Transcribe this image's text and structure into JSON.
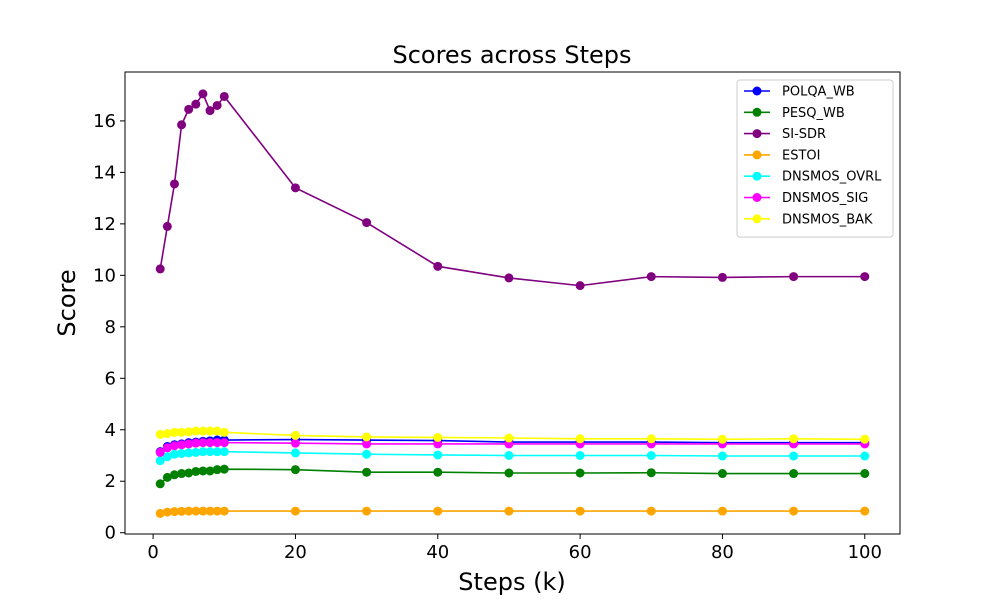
{
  "chart_data": {
    "type": "line",
    "title": "Scores across Steps",
    "xlabel": "Steps (k)",
    "ylabel": "Score",
    "xlim": [
      -3.95,
      104.95
    ],
    "ylim": [
      -0.05,
      17.9
    ],
    "xticks": [
      0,
      20,
      40,
      60,
      80,
      100
    ],
    "yticks": [
      0,
      2,
      4,
      6,
      8,
      10,
      12,
      14,
      16
    ],
    "grid": false,
    "legend_position": "top-right",
    "x": [
      1,
      2,
      3,
      4,
      5,
      6,
      7,
      8,
      9,
      10,
      20,
      30,
      40,
      50,
      60,
      70,
      80,
      90,
      100
    ],
    "series": [
      {
        "name": "POLQA_WB",
        "color": "#0000ff",
        "values": [
          3.15,
          3.35,
          3.42,
          3.45,
          3.5,
          3.52,
          3.55,
          3.57,
          3.6,
          3.6,
          3.62,
          3.6,
          3.58,
          3.52,
          3.52,
          3.52,
          3.5,
          3.5,
          3.5
        ]
      },
      {
        "name": "PESQ_WB",
        "color": "#008000",
        "values": [
          1.9,
          2.15,
          2.25,
          2.3,
          2.32,
          2.38,
          2.4,
          2.4,
          2.45,
          2.47,
          2.45,
          2.35,
          2.35,
          2.32,
          2.32,
          2.33,
          2.3,
          2.3,
          2.3
        ]
      },
      {
        "name": "SI-SDR",
        "color": "#800080",
        "values": [
          10.25,
          11.9,
          13.55,
          15.85,
          16.45,
          16.65,
          17.05,
          16.4,
          16.6,
          16.95,
          13.4,
          12.05,
          10.35,
          9.9,
          9.6,
          9.95,
          9.92,
          9.95,
          9.95
        ]
      },
      {
        "name": "ESTOI",
        "color": "#ffa500",
        "values": [
          0.75,
          0.8,
          0.82,
          0.83,
          0.84,
          0.84,
          0.84,
          0.84,
          0.84,
          0.84,
          0.84,
          0.84,
          0.84,
          0.84,
          0.84,
          0.84,
          0.84,
          0.84,
          0.84
        ]
      },
      {
        "name": "DNSMOS_OVRL",
        "color": "#00ffff",
        "values": [
          2.8,
          2.95,
          3.05,
          3.08,
          3.1,
          3.12,
          3.15,
          3.15,
          3.15,
          3.15,
          3.1,
          3.05,
          3.02,
          3.0,
          3.0,
          3.0,
          2.98,
          2.98,
          2.98
        ]
      },
      {
        "name": "DNSMOS_SIG",
        "color": "#ff00ff",
        "values": [
          3.12,
          3.3,
          3.38,
          3.42,
          3.45,
          3.48,
          3.5,
          3.5,
          3.5,
          3.5,
          3.48,
          3.45,
          3.45,
          3.45,
          3.45,
          3.45,
          3.45,
          3.45,
          3.45
        ]
      },
      {
        "name": "DNSMOS_BAK",
        "color": "#ffff00",
        "values": [
          3.82,
          3.85,
          3.9,
          3.9,
          3.92,
          3.95,
          3.95,
          3.95,
          3.95,
          3.9,
          3.78,
          3.72,
          3.7,
          3.68,
          3.65,
          3.65,
          3.63,
          3.65,
          3.63
        ]
      }
    ]
  }
}
